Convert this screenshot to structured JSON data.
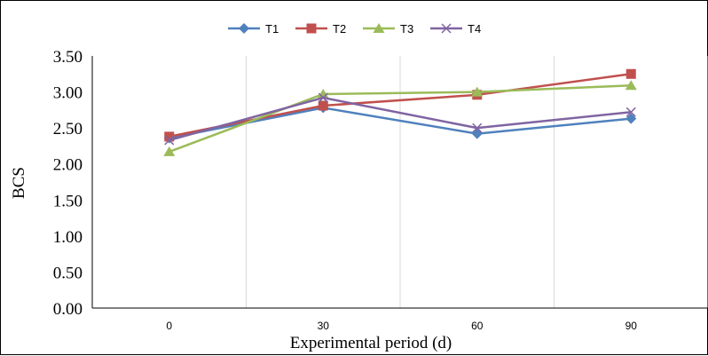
{
  "chart_data": {
    "type": "line",
    "title": "",
    "xlabel": "Experimental  period (d)",
    "ylabel": "BCS",
    "categories": [
      "0",
      "30",
      "60",
      "90"
    ],
    "y_ticks": [
      "0.00",
      "0.50",
      "1.00",
      "1.50",
      "2.00",
      "2.50",
      "3.00",
      "3.50"
    ],
    "ylim": [
      0,
      3.5
    ],
    "grid": "vertical",
    "legend_position": "top",
    "series": [
      {
        "name": "T1",
        "color": "#4F81BD",
        "marker": "diamond",
        "values": [
          2.36,
          2.78,
          2.42,
          2.63
        ]
      },
      {
        "name": "T2",
        "color": "#C0504D",
        "marker": "square",
        "values": [
          2.38,
          2.81,
          2.96,
          3.25
        ]
      },
      {
        "name": "T3",
        "color": "#9BBB59",
        "marker": "triangle",
        "values": [
          2.17,
          2.97,
          3.0,
          3.09
        ]
      },
      {
        "name": "T4",
        "color": "#8064A2",
        "marker": "x",
        "values": [
          2.33,
          2.92,
          2.5,
          2.72
        ]
      }
    ]
  }
}
